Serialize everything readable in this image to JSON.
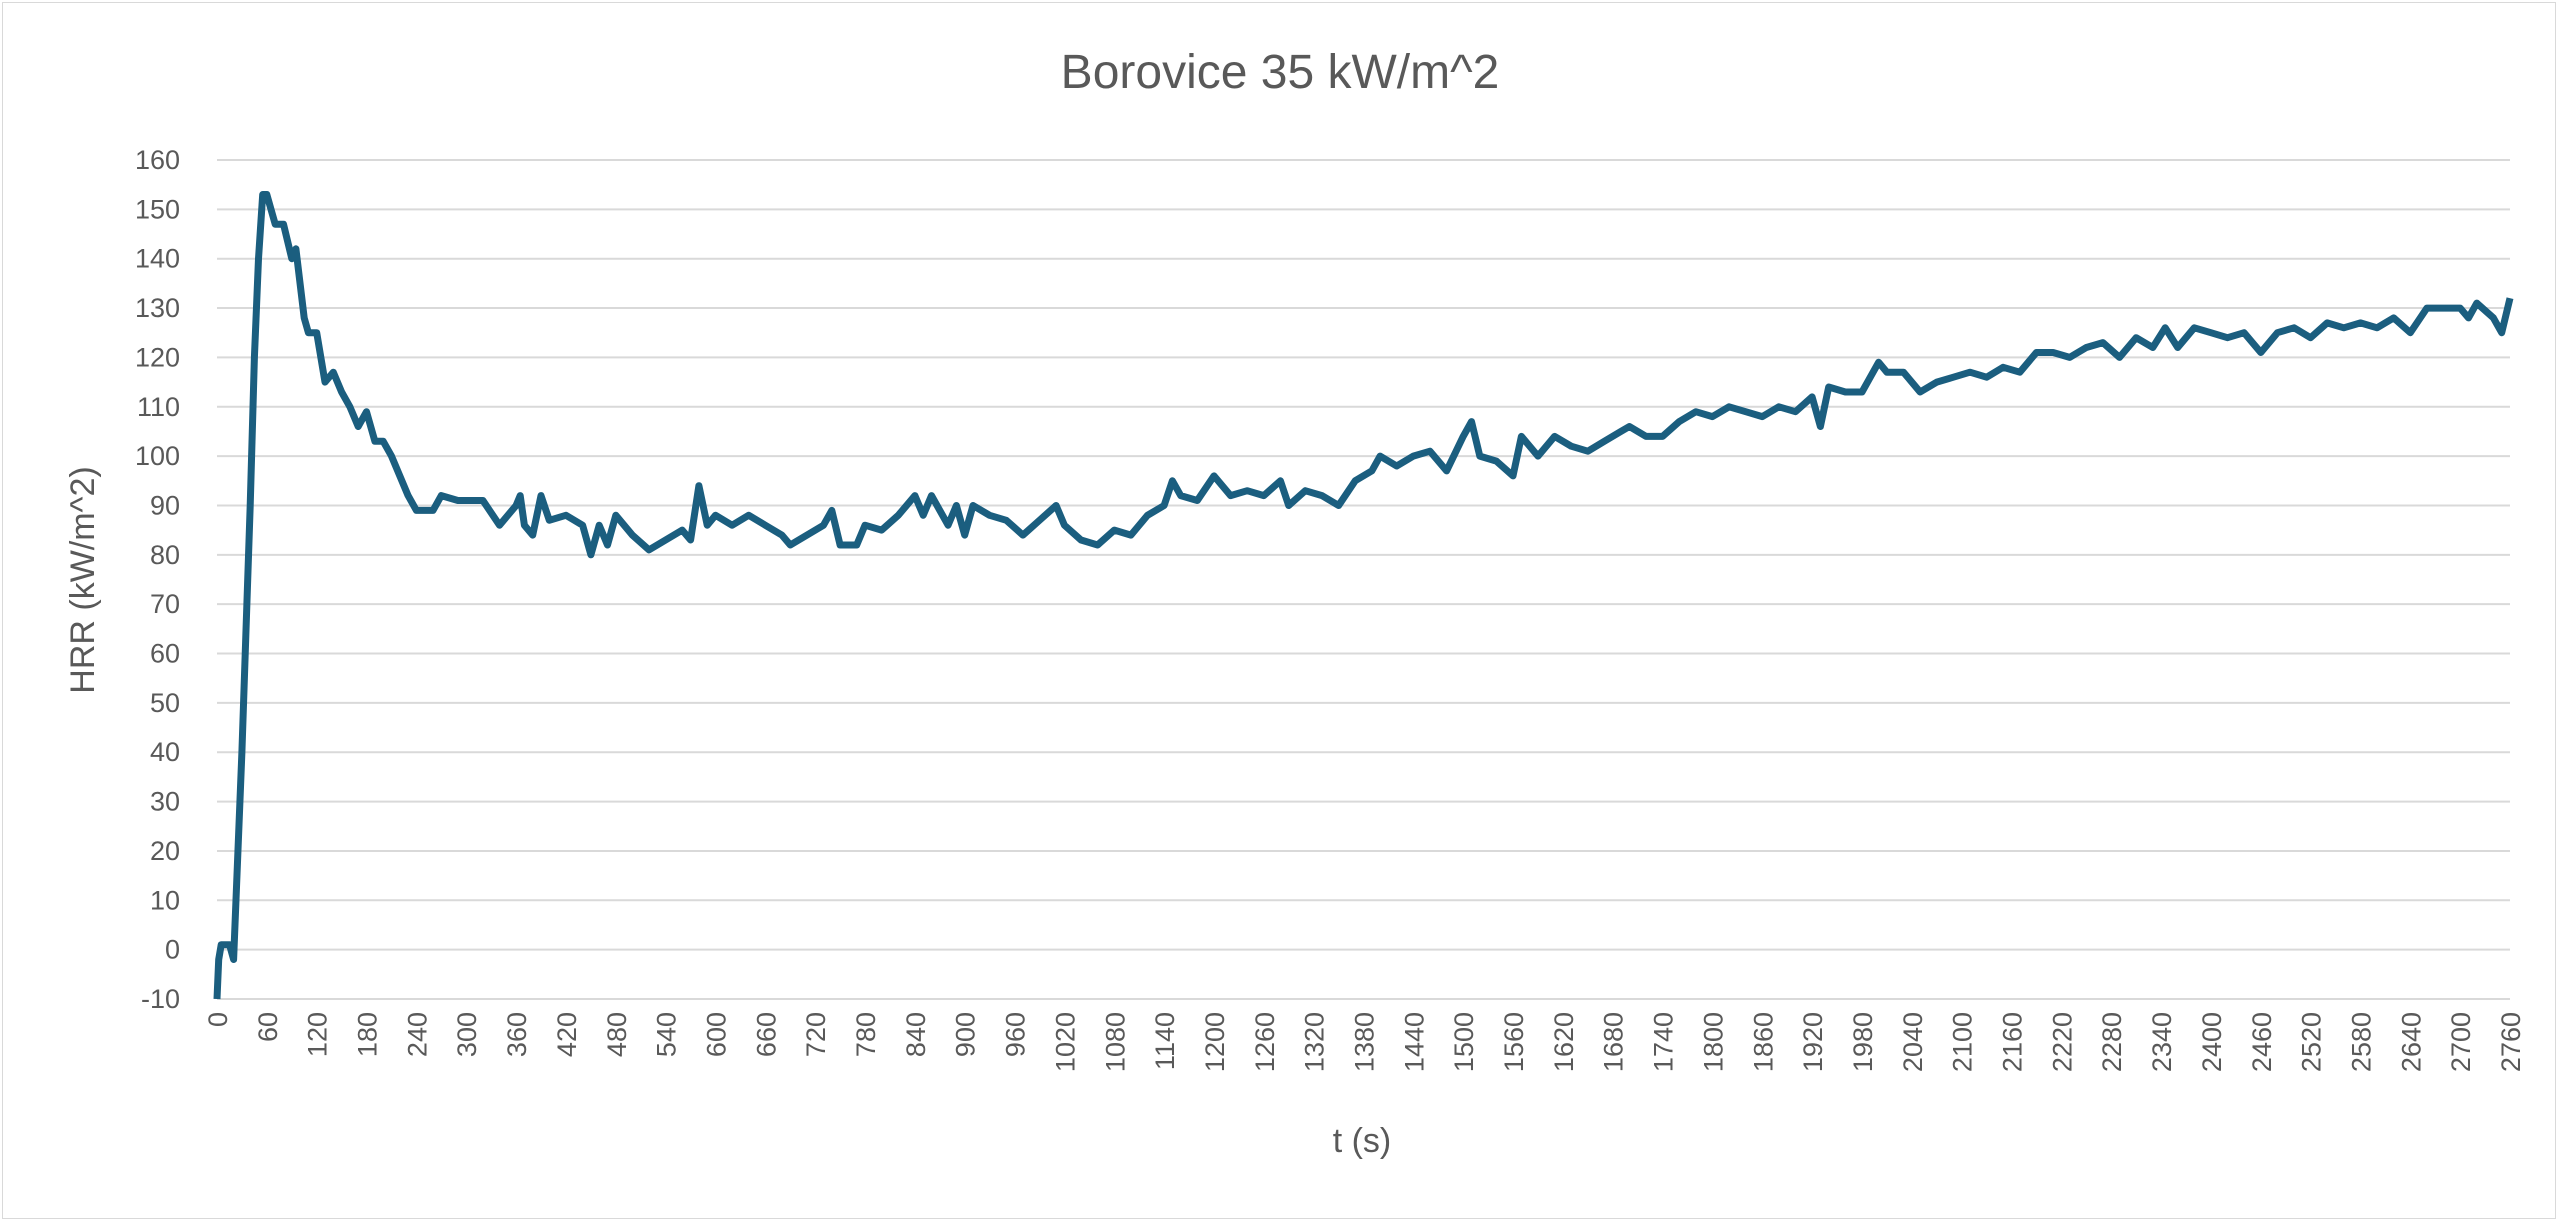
{
  "chart_data": {
    "type": "line",
    "title": "Borovice 35 kW/m^2",
    "xlabel": "t (s)",
    "ylabel": "HRR (kW/m^2)",
    "ylim": [
      -10,
      160
    ],
    "xlim": [
      0,
      2760
    ],
    "grid": true,
    "legend": "none",
    "y_ticks": [
      "-10",
      "0",
      "10",
      "20",
      "30",
      "40",
      "50",
      "60",
      "70",
      "80",
      "90",
      "100",
      "110",
      "120",
      "130",
      "140",
      "150",
      "160"
    ],
    "x_ticks": [
      "0",
      "60",
      "120",
      "180",
      "240",
      "300",
      "360",
      "420",
      "480",
      "540",
      "600",
      "660",
      "720",
      "780",
      "840",
      "900",
      "960",
      "1020",
      "1080",
      "1140",
      "1200",
      "1260",
      "1320",
      "1380",
      "1440",
      "1500",
      "1560",
      "1620",
      "1680",
      "1740",
      "1800",
      "1860",
      "1920",
      "1980",
      "2040",
      "2100",
      "2160",
      "2220",
      "2280",
      "2340",
      "2400",
      "2460",
      "2520",
      "2580",
      "2640",
      "2700",
      "2760"
    ],
    "series": [
      {
        "name": "HRR",
        "color": "#1b5e7f",
        "x": [
          0,
          2,
          5,
          15,
          20,
          30,
          40,
          45,
          50,
          55,
          60,
          70,
          80,
          90,
          95,
          105,
          110,
          120,
          130,
          140,
          150,
          160,
          170,
          180,
          190,
          200,
          210,
          220,
          230,
          240,
          260,
          270,
          290,
          320,
          340,
          360,
          365,
          370,
          380,
          390,
          400,
          420,
          440,
          450,
          460,
          470,
          480,
          500,
          520,
          540,
          560,
          570,
          580,
          590,
          600,
          620,
          640,
          660,
          680,
          690,
          710,
          730,
          740,
          750,
          770,
          780,
          800,
          820,
          840,
          850,
          860,
          880,
          890,
          900,
          910,
          930,
          950,
          970,
          990,
          1010,
          1020,
          1040,
          1060,
          1080,
          1100,
          1120,
          1140,
          1150,
          1160,
          1180,
          1200,
          1220,
          1240,
          1260,
          1280,
          1290,
          1310,
          1330,
          1350,
          1370,
          1390,
          1400,
          1420,
          1440,
          1460,
          1480,
          1500,
          1510,
          1520,
          1540,
          1560,
          1570,
          1590,
          1610,
          1630,
          1650,
          1670,
          1690,
          1700,
          1720,
          1740,
          1760,
          1780,
          1800,
          1820,
          1840,
          1860,
          1880,
          1900,
          1920,
          1930,
          1940,
          1960,
          1980,
          2000,
          2010,
          2030,
          2050,
          2070,
          2090,
          2110,
          2130,
          2150,
          2170,
          2190,
          2210,
          2230,
          2250,
          2270,
          2290,
          2310,
          2330,
          2345,
          2360,
          2380,
          2400,
          2420,
          2440,
          2460,
          2480,
          2500,
          2520,
          2540,
          2560,
          2580,
          2600,
          2620,
          2640,
          2660,
          2680,
          2700,
          2710,
          2720,
          2740,
          2750,
          2760
        ],
        "y": [
          -10,
          -2,
          1,
          1,
          -2,
          40,
          90,
          120,
          140,
          153,
          153,
          147,
          147,
          140,
          142,
          128,
          125,
          125,
          115,
          117,
          113,
          110,
          106,
          109,
          103,
          103,
          100,
          96,
          92,
          89,
          89,
          92,
          91,
          91,
          86,
          90,
          92,
          86,
          84,
          92,
          87,
          88,
          86,
          80,
          86,
          82,
          88,
          84,
          81,
          83,
          85,
          83,
          94,
          86,
          88,
          86,
          88,
          86,
          84,
          82,
          84,
          86,
          89,
          82,
          82,
          86,
          85,
          88,
          92,
          88,
          92,
          86,
          90,
          84,
          90,
          88,
          87,
          84,
          87,
          90,
          86,
          83,
          82,
          85,
          84,
          88,
          90,
          95,
          92,
          91,
          96,
          92,
          93,
          92,
          95,
          90,
          93,
          92,
          90,
          95,
          97,
          100,
          98,
          100,
          101,
          97,
          104,
          107,
          100,
          99,
          96,
          104,
          100,
          104,
          102,
          101,
          103,
          105,
          106,
          104,
          104,
          107,
          109,
          108,
          110,
          109,
          108,
          110,
          109,
          112,
          106,
          114,
          113,
          113,
          119,
          117,
          117,
          113,
          115,
          116,
          117,
          116,
          118,
          117,
          121,
          121,
          120,
          122,
          123,
          120,
          124,
          122,
          126,
          122,
          126,
          125,
          124,
          125,
          121,
          125,
          126,
          124,
          127,
          126,
          127,
          126,
          128,
          125,
          130,
          130,
          130,
          128,
          131,
          128,
          125,
          132
        ]
      }
    ]
  }
}
